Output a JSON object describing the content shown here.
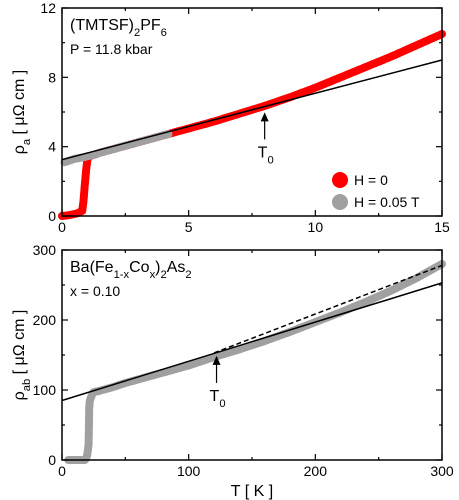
{
  "chart_data": [
    {
      "type": "scatter",
      "title_parts": [
        {
          "t": "(TMTSF)",
          "s": "base"
        },
        {
          "t": "2",
          "s": "sub"
        },
        {
          "t": "PF",
          "s": "base"
        },
        {
          "t": "6",
          "s": "sub"
        }
      ],
      "subtitle": "P = 11.8 kbar",
      "xlabel": "",
      "ylabel_parts": [
        {
          "t": "ρ",
          "s": "base"
        },
        {
          "t": "a",
          "s": "sub"
        },
        {
          "t": " [ μΩ cm ]",
          "s": "base"
        }
      ],
      "xlim": [
        0,
        15
      ],
      "ylim": [
        0,
        12
      ],
      "xticks": [
        0,
        5,
        10,
        15
      ],
      "yticks": [
        0,
        4,
        8,
        12
      ],
      "legend_position": "bottom-right",
      "series": [
        {
          "name": "H = 0",
          "color": "#ff0000",
          "x": [
            0.0,
            0.3,
            0.6,
            0.8,
            0.85,
            0.9,
            0.95,
            1.0,
            1.05,
            1.1,
            1.2,
            1.5,
            2,
            3,
            4,
            5,
            6,
            7,
            8,
            9,
            10,
            11,
            12,
            13,
            14,
            15
          ],
          "y": [
            0.0,
            0.05,
            0.15,
            0.3,
            0.9,
            1.8,
            2.6,
            3.25,
            3.4,
            3.45,
            3.5,
            3.65,
            3.85,
            4.25,
            4.65,
            5.05,
            5.45,
            5.9,
            6.35,
            6.85,
            7.4,
            8.0,
            8.6,
            9.2,
            9.85,
            10.5
          ]
        },
        {
          "name": "H = 0.05 T",
          "color": "#a0a0a0",
          "x": [
            0.1,
            0.3,
            0.5,
            0.7,
            0.9,
            1.0,
            1.2,
            1.5,
            2.0,
            2.5,
            3.0,
            3.5,
            4.0,
            4.2
          ],
          "y": [
            3.1,
            3.2,
            3.3,
            3.35,
            3.4,
            3.45,
            3.5,
            3.65,
            3.85,
            4.05,
            4.25,
            4.45,
            4.65,
            4.72
          ]
        }
      ],
      "fit_lines": [
        {
          "style": "solid",
          "x": [
            0,
            15
          ],
          "y": [
            3.25,
            9.0
          ]
        }
      ],
      "annotations": [
        {
          "label": "T",
          "sub": "0",
          "x": 8,
          "y": 6.15
        }
      ]
    },
    {
      "type": "scatter",
      "title_parts": [
        {
          "t": "Ba(Fe",
          "s": "base"
        },
        {
          "t": "1-x",
          "s": "sub"
        },
        {
          "t": "Co",
          "s": "base"
        },
        {
          "t": "x",
          "s": "sub"
        },
        {
          "t": ")",
          "s": "base"
        },
        {
          "t": "2",
          "s": "sub"
        },
        {
          "t": "As",
          "s": "base"
        },
        {
          "t": "2",
          "s": "sub"
        }
      ],
      "subtitle": "x = 0.10",
      "xlabel": "T [ K ]",
      "ylabel_parts": [
        {
          "t": "ρ",
          "s": "base"
        },
        {
          "t": "ab",
          "s": "sub"
        },
        {
          "t": " [ μΩ cm ]",
          "s": "base"
        }
      ],
      "xlim": [
        0,
        300
      ],
      "ylim": [
        0,
        300
      ],
      "xticks": [
        0,
        100,
        200,
        300
      ],
      "yticks": [
        0,
        100,
        200,
        300
      ],
      "series": [
        {
          "name": "",
          "color": "#a0a0a0",
          "x": [
            5,
            10,
            15,
            18,
            19,
            20,
            21,
            21.5,
            22,
            23,
            24,
            25,
            30,
            40,
            50,
            60,
            80,
            100,
            120,
            140,
            160,
            180,
            200,
            220,
            240,
            260,
            280,
            300
          ],
          "y": [
            0,
            0,
            0,
            0,
            2,
            8,
            22,
            75,
            85,
            90,
            94,
            97,
            99,
            104,
            110,
            115,
            125,
            135,
            147,
            158,
            170,
            183,
            197,
            211,
            226,
            242,
            260,
            280
          ]
        }
      ],
      "fit_lines": [
        {
          "style": "solid",
          "x": [
            0,
            300
          ],
          "y": [
            85,
            253
          ]
        },
        {
          "style": "dashed",
          "x": [
            120,
            300
          ],
          "y": [
            153,
            278
          ]
        }
      ],
      "annotations": [
        {
          "label": "T",
          "sub": "0",
          "x": 122,
          "y": 153
        }
      ]
    }
  ]
}
